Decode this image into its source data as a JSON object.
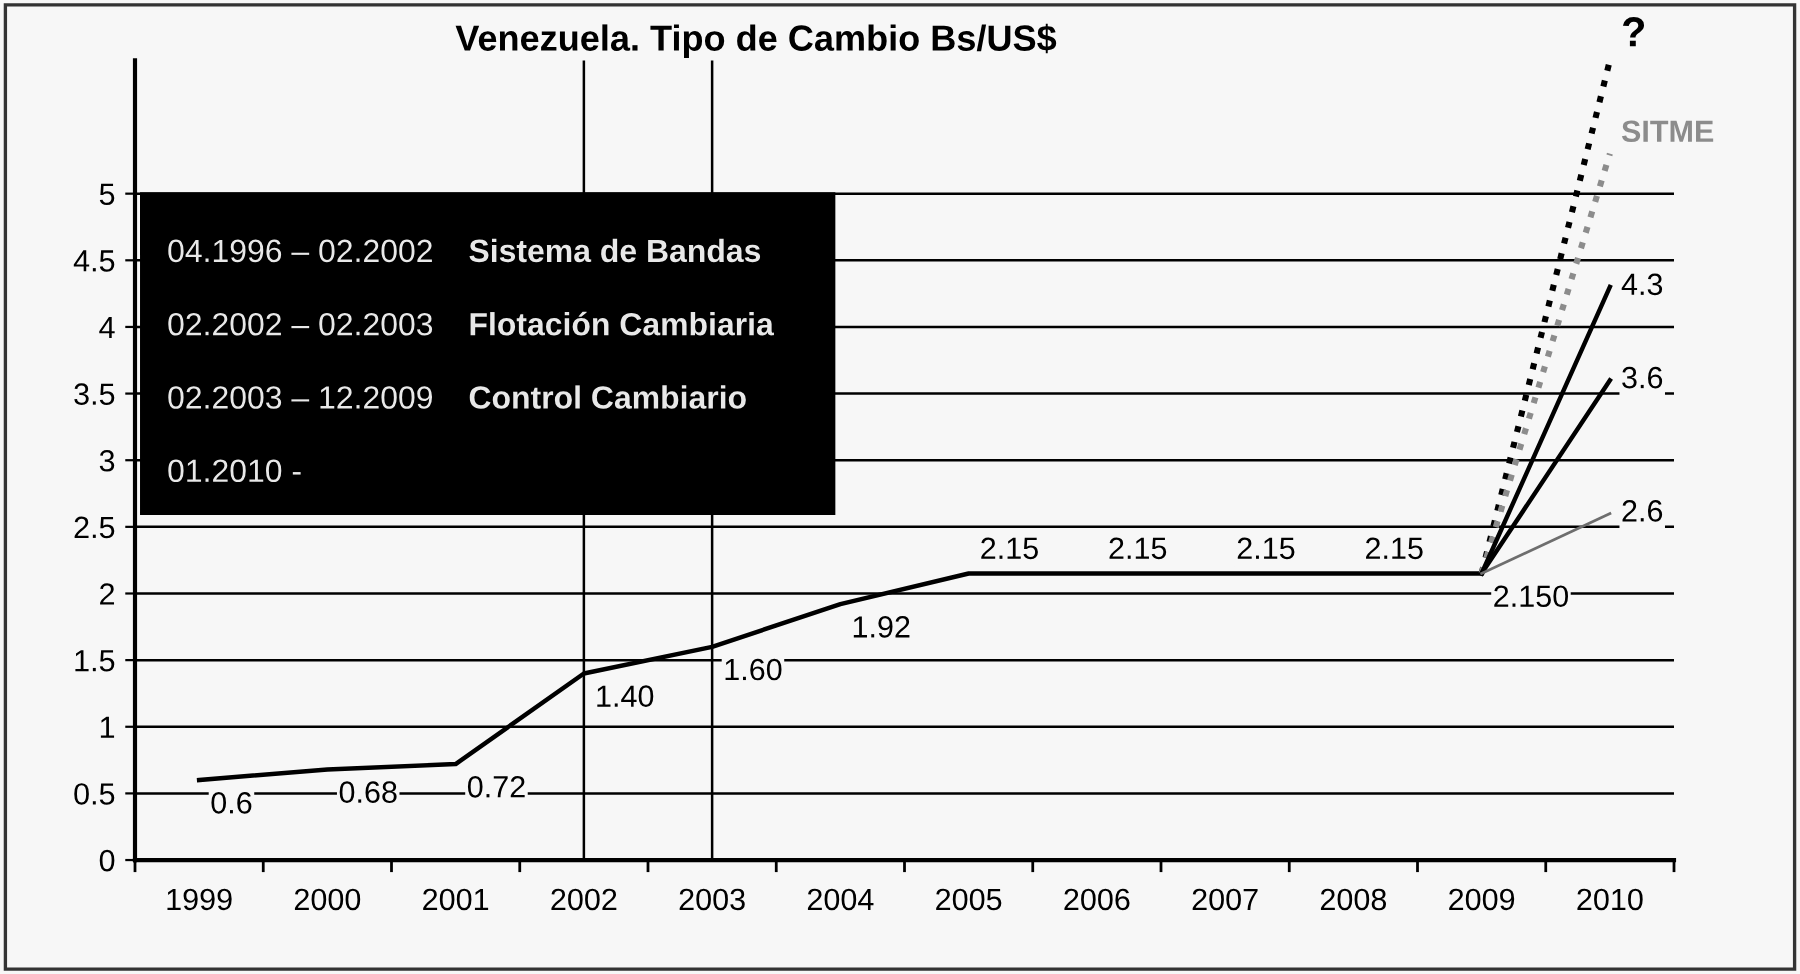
{
  "chart_data": {
    "type": "line",
    "title": "Venezuela. Tipo de Cambio Bs/US$",
    "categories": [
      "1999",
      "2000",
      "2001",
      "2002",
      "2003",
      "2004",
      "2005",
      "2006",
      "2007",
      "2008",
      "2009",
      "2010"
    ],
    "series": [
      {
        "color": "#000000",
        "values": [
          0.6,
          0.68,
          0.72,
          1.4,
          1.6,
          1.92,
          2.15,
          2.15,
          2.15,
          2.15,
          2.15,
          null
        ],
        "value_labels": [
          "0.6",
          "0.68",
          "0.72",
          "1.40",
          "1.60",
          "1.92",
          "2.15",
          "2.15",
          "2.15",
          "2.15",
          "2.150",
          null
        ]
      },
      {
        "name": "?",
        "color": "#000000",
        "line_style": "dotted",
        "values": [
          null,
          null,
          null,
          null,
          null,
          null,
          null,
          null,
          null,
          null,
          2.15,
          6.0
        ]
      },
      {
        "name": "SITME",
        "color": "#8c8c8c",
        "line_style": "dotted",
        "values": [
          null,
          null,
          null,
          null,
          null,
          null,
          null,
          null,
          null,
          null,
          2.15,
          5.3
        ]
      },
      {
        "color": "#000000",
        "values": [
          null,
          null,
          null,
          null,
          null,
          null,
          null,
          null,
          null,
          null,
          2.15,
          4.3
        ],
        "value_labels": [
          null,
          null,
          null,
          null,
          null,
          null,
          null,
          null,
          null,
          null,
          null,
          "4.3"
        ]
      },
      {
        "color": "#000000",
        "values": [
          null,
          null,
          null,
          null,
          null,
          null,
          null,
          null,
          null,
          null,
          2.15,
          3.6
        ],
        "value_labels": [
          null,
          null,
          null,
          null,
          null,
          null,
          null,
          null,
          null,
          null,
          null,
          "3.6"
        ]
      },
      {
        "color": "#6e6e6e",
        "values": [
          null,
          null,
          null,
          null,
          null,
          null,
          null,
          null,
          null,
          null,
          2.15,
          2.6
        ],
        "value_labels": [
          null,
          null,
          null,
          null,
          null,
          null,
          null,
          null,
          null,
          null,
          null,
          "2.6"
        ]
      }
    ],
    "ylim": [
      0,
      6
    ],
    "yticks": [
      0,
      0.5,
      1,
      1.5,
      2,
      2.5,
      3,
      3.5,
      4,
      4.5,
      5
    ],
    "grid": "y",
    "marker": "none",
    "line_style": "solid",
    "ref_lines": [
      {
        "axis": "x",
        "value": "2002",
        "color": "#000000"
      },
      {
        "axis": "x",
        "value": "2003",
        "color": "#000000"
      }
    ],
    "annotations": [
      "04.1996 – 02.2002",
      "Sistema de Bandas",
      "02.2002 – 02.2003",
      "Flotación Cambiaria",
      "02.2003 – 12.2009",
      "Control Cambiario",
      "01.2010 -"
    ]
  }
}
